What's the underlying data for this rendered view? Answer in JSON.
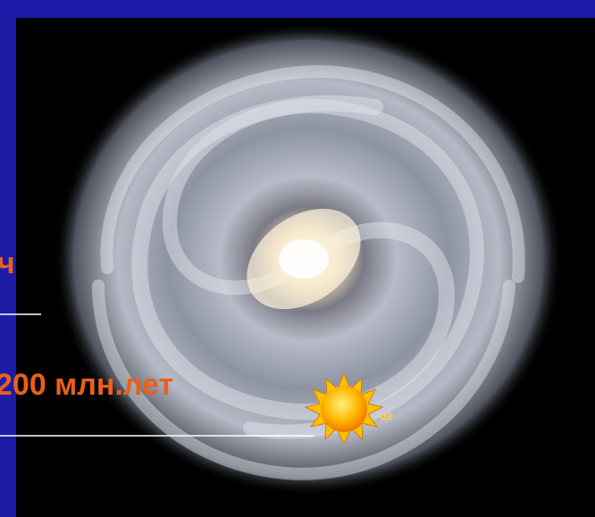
{
  "slide": {
    "label_top": "ч",
    "label_period": "200 млн.лет",
    "sun_label": "це"
  }
}
